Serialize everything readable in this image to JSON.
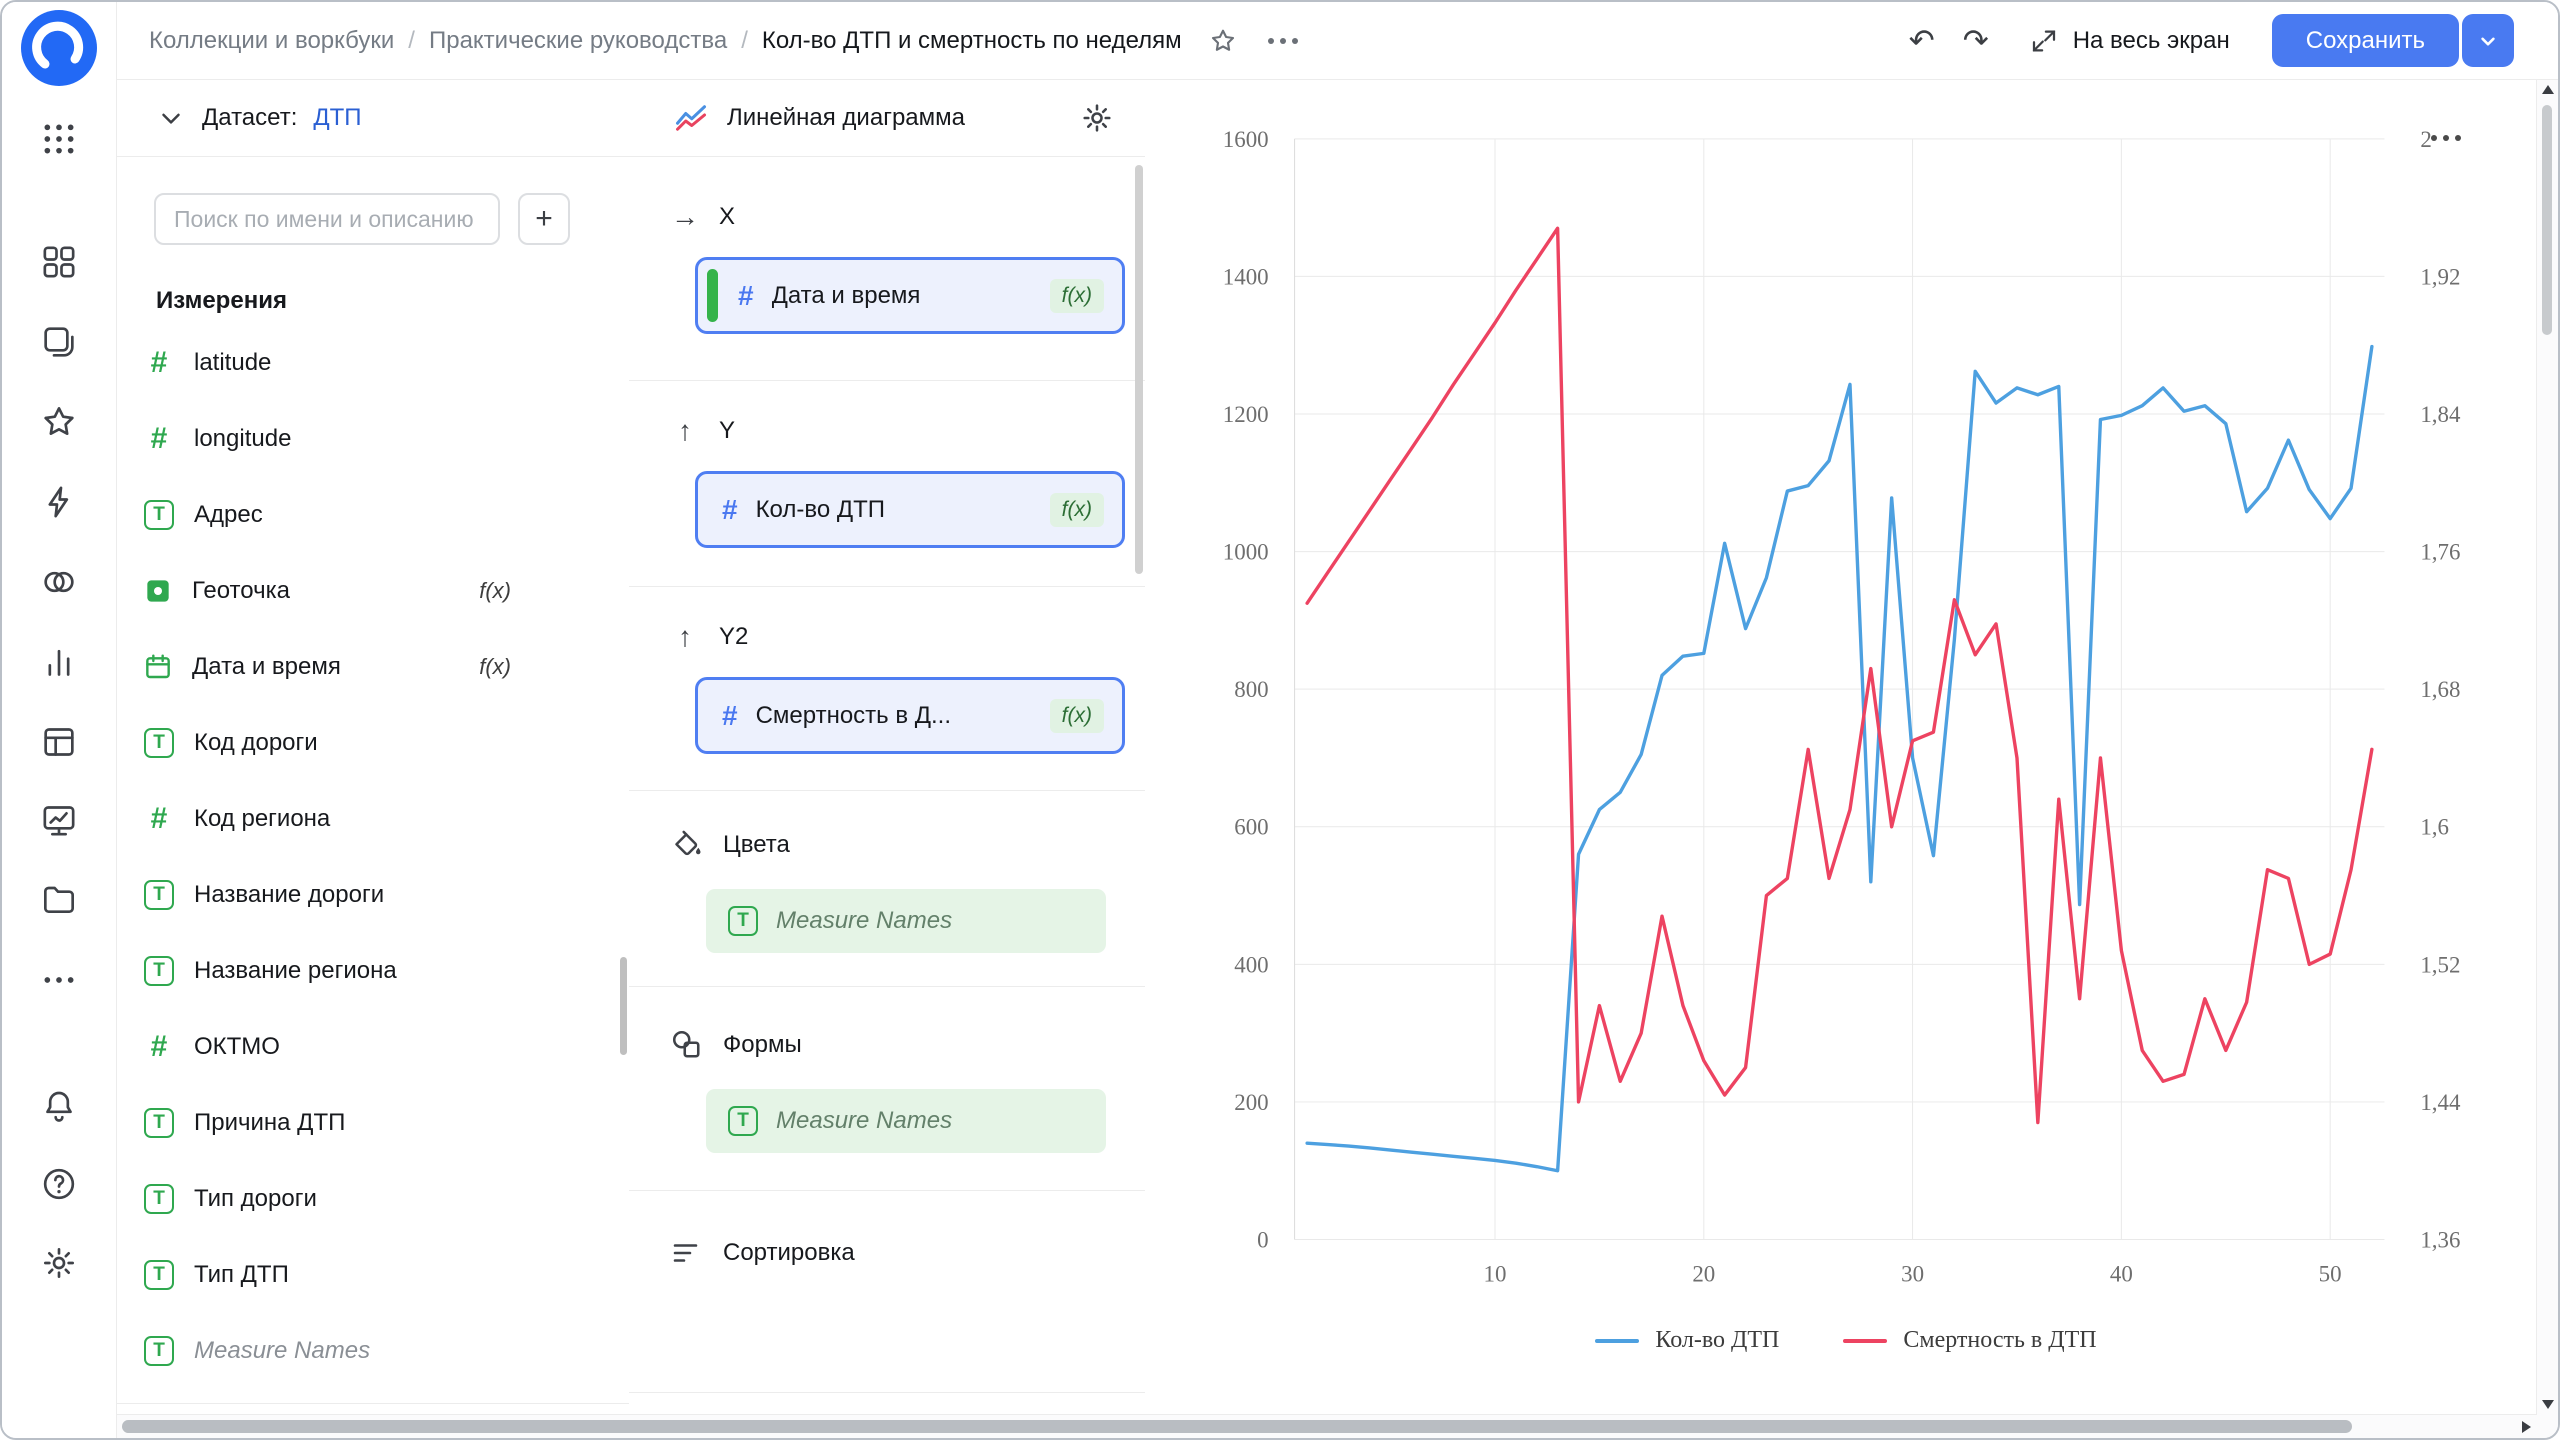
{
  "ui": {
    "formula_label": "f(x)"
  },
  "topbar": {
    "breadcrumbs": [
      "Коллекции и воркбуки",
      "Практические руководства",
      "Кол-во ДТП и смертность по неделям"
    ],
    "separator": "/",
    "fullscreen_label": "На весь экран",
    "save_label": "Сохранить"
  },
  "dataset_panel": {
    "label": "Датасет:",
    "name": "ДТП",
    "search_placeholder": "Поиск по имени и описанию",
    "add_label": "+",
    "section_title": "Измерения",
    "fields": [
      {
        "name": "latitude",
        "type": "number"
      },
      {
        "name": "longitude",
        "type": "number"
      },
      {
        "name": "Адрес",
        "type": "text"
      },
      {
        "name": "Геоточка",
        "type": "geopoint",
        "formula": true
      },
      {
        "name": "Дата и время",
        "type": "datetime",
        "formula": true
      },
      {
        "name": "Код дороги",
        "type": "text"
      },
      {
        "name": "Код региона",
        "type": "number"
      },
      {
        "name": "Название дороги",
        "type": "text"
      },
      {
        "name": "Название региона",
        "type": "text"
      },
      {
        "name": "ОКТМО",
        "type": "number"
      },
      {
        "name": "Причина ДТП",
        "type": "text"
      },
      {
        "name": "Тип дороги",
        "type": "text"
      },
      {
        "name": "Тип ДТП",
        "type": "text"
      },
      {
        "name": "Measure Names",
        "type": "text",
        "pseudo": true
      }
    ]
  },
  "config_panel": {
    "title": "Линейная диаграмма",
    "x_label": "X",
    "x_field": "Дата и время",
    "y_label": "Y",
    "y_field": "Кол-во ДТП",
    "y2_label": "Y2",
    "y2_field": "Смертность в Д...",
    "colors_label": "Цвета",
    "colors_field": "Measure Names",
    "shapes_label": "Формы",
    "shapes_field": "Measure Names",
    "sort_label": "Сортировка"
  },
  "chart_data": {
    "type": "line",
    "title": "",
    "x_start": 1,
    "x_label_ticks": [
      10,
      20,
      30,
      40,
      50
    ],
    "y_left": {
      "min": 0,
      "max": 1600,
      "step": 200
    },
    "y_right": {
      "min": 1.36,
      "max": 2.0,
      "labels_asc": [
        "1,36",
        "1,44",
        "1,52",
        "1,6",
        "1,68",
        "1,76",
        "1,84",
        "1,92",
        "2"
      ]
    },
    "grid": true,
    "legend_position": "bottom",
    "series": [
      {
        "name": "Кол-во ДТП",
        "axis": "left",
        "color": "#4da0e0",
        "values": [
          140,
          138,
          136,
          133,
          130,
          127,
          124,
          121,
          118,
          115,
          111,
          106,
          100,
          560,
          625,
          650,
          705,
          820,
          848,
          852,
          1012,
          888,
          962,
          1088,
          1096,
          1132,
          1243,
          520,
          1078,
          700,
          558,
          872,
          1262,
          1216,
          1238,
          1228,
          1240,
          487,
          1192,
          1198,
          1212,
          1238,
          1204,
          1212,
          1186,
          1058,
          1092,
          1162,
          1090,
          1048,
          1092,
          1298
        ]
      },
      {
        "name": "Смертность в ДТП",
        "axis": "right",
        "color": "#ed4361",
        "values": [
          1.73,
          1.748,
          1.766,
          1.784,
          1.802,
          1.82,
          1.838,
          1.857,
          1.875,
          1.893,
          1.912,
          1.93,
          1.948,
          1.44,
          1.496,
          1.452,
          1.48,
          1.548,
          1.496,
          1.464,
          1.444,
          1.46,
          1.56,
          1.57,
          1.645,
          1.57,
          1.61,
          1.692,
          1.6,
          1.65,
          1.655,
          1.732,
          1.7,
          1.718,
          1.64,
          1.428,
          1.616,
          1.5,
          1.64,
          1.528,
          1.47,
          1.452,
          1.456,
          1.5,
          1.47,
          1.498,
          1.575,
          1.57,
          1.52,
          1.526,
          1.575,
          1.645
        ]
      }
    ]
  },
  "colors": {
    "accent_blue": "#497af1",
    "field_green": "#2fa84f",
    "line_blue": "#4da0e0",
    "line_red": "#ed4361"
  }
}
